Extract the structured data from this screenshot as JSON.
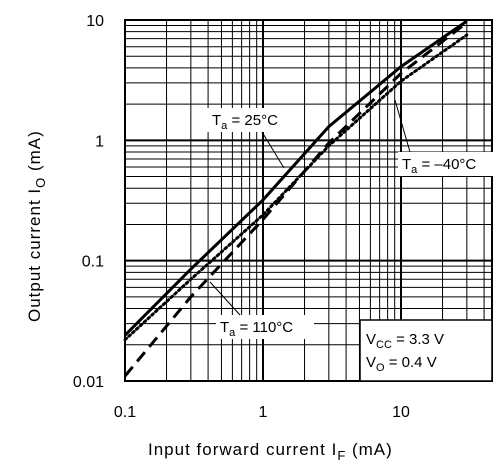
{
  "chart_data": {
    "type": "line",
    "scale": {
      "x": "log",
      "y": "log"
    },
    "xlim": [
      0.1,
      30
    ],
    "ylim": [
      0.01,
      10
    ],
    "x_tick_labels": [
      "0.1",
      "1",
      "10"
    ],
    "y_tick_labels": [
      "0.01",
      "0.1",
      "1",
      "10"
    ],
    "grid": true,
    "xlabel": {
      "text": "Input forward current",
      "symbol": "I",
      "subscript": "F",
      "unit": "(mA)"
    },
    "ylabel": {
      "text": "Output current",
      "symbol": "I",
      "subscript": "O",
      "unit": "(mA)"
    },
    "series": [
      {
        "name": "Ta = 25°C",
        "style": "solid",
        "color": "#000000",
        "x": [
          0.1,
          0.3,
          1,
          3,
          10,
          30
        ],
        "y": [
          0.024,
          0.085,
          0.32,
          1.3,
          4.1,
          9.8
        ]
      },
      {
        "name": "Ta = −40°C",
        "style": "dotted",
        "color": "#000000",
        "x": [
          0.1,
          0.3,
          1,
          3,
          10,
          30
        ],
        "y": [
          0.022,
          0.07,
          0.24,
          0.9,
          3.1,
          7.5
        ]
      },
      {
        "name": "Ta = 110°C",
        "style": "dashed",
        "color": "#000000",
        "x": [
          0.1,
          0.3,
          1,
          3,
          10,
          30
        ],
        "y": [
          0.011,
          0.05,
          0.22,
          0.95,
          3.6,
          9.5
        ]
      }
    ],
    "annotations": [
      {
        "label": "Ta = 25°C",
        "sym": "T",
        "sub": "a",
        "rest": " = 25°C"
      },
      {
        "label": "Ta = −40°C",
        "sym": "T",
        "sub": "a",
        "rest": " = –40°C"
      },
      {
        "label": "Ta = 110°C",
        "sym": "T",
        "sub": "a",
        "rest": " = 110°C"
      }
    ],
    "conditions": [
      {
        "sym": "V",
        "sub": "CC",
        "rest": " = 3.3 V"
      },
      {
        "sym": "V",
        "sub": "O",
        "rest": " = 0.4 V"
      }
    ]
  }
}
